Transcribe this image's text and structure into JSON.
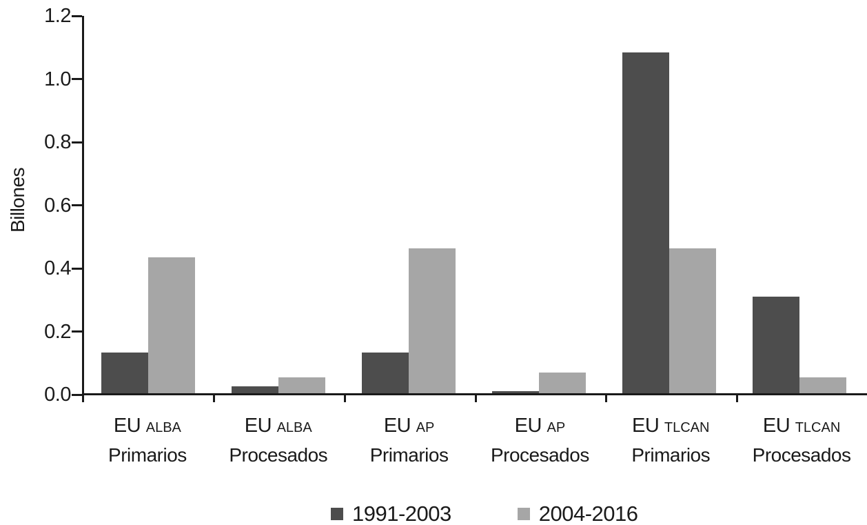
{
  "chart_data": {
    "type": "bar",
    "title": "",
    "xlabel": "",
    "ylabel": "Billones",
    "ylim": [
      0,
      1.2
    ],
    "ytick_step": 0.2,
    "ytick_labels": [
      "0.0",
      "0.2",
      "0.4",
      "0.6",
      "0.8",
      "1.0",
      "1.2"
    ],
    "grid": false,
    "legend_position": "bottom",
    "axis_color": "#1a1a1a",
    "categories": [
      {
        "group": "EU",
        "subgroup": "ALBA",
        "type": "Primarios"
      },
      {
        "group": "EU",
        "subgroup": "ALBA",
        "type": "Procesados"
      },
      {
        "group": "EU",
        "subgroup": "AP",
        "type": "Primarios"
      },
      {
        "group": "EU",
        "subgroup": "AP",
        "type": "Procesados"
      },
      {
        "group": "EU",
        "subgroup": "TLCAN",
        "type": "Primarios"
      },
      {
        "group": "EU",
        "subgroup": "TLCAN",
        "type": "Procesados"
      }
    ],
    "series": [
      {
        "name": "1991-2003",
        "color": "#4d4d4d",
        "values": [
          0.13,
          0.022,
          0.13,
          0.007,
          1.08,
          0.305
        ]
      },
      {
        "name": "2004-2016",
        "color": "#a6a6a6",
        "values": [
          0.43,
          0.05,
          0.46,
          0.065,
          0.46,
          0.05
        ]
      }
    ]
  }
}
